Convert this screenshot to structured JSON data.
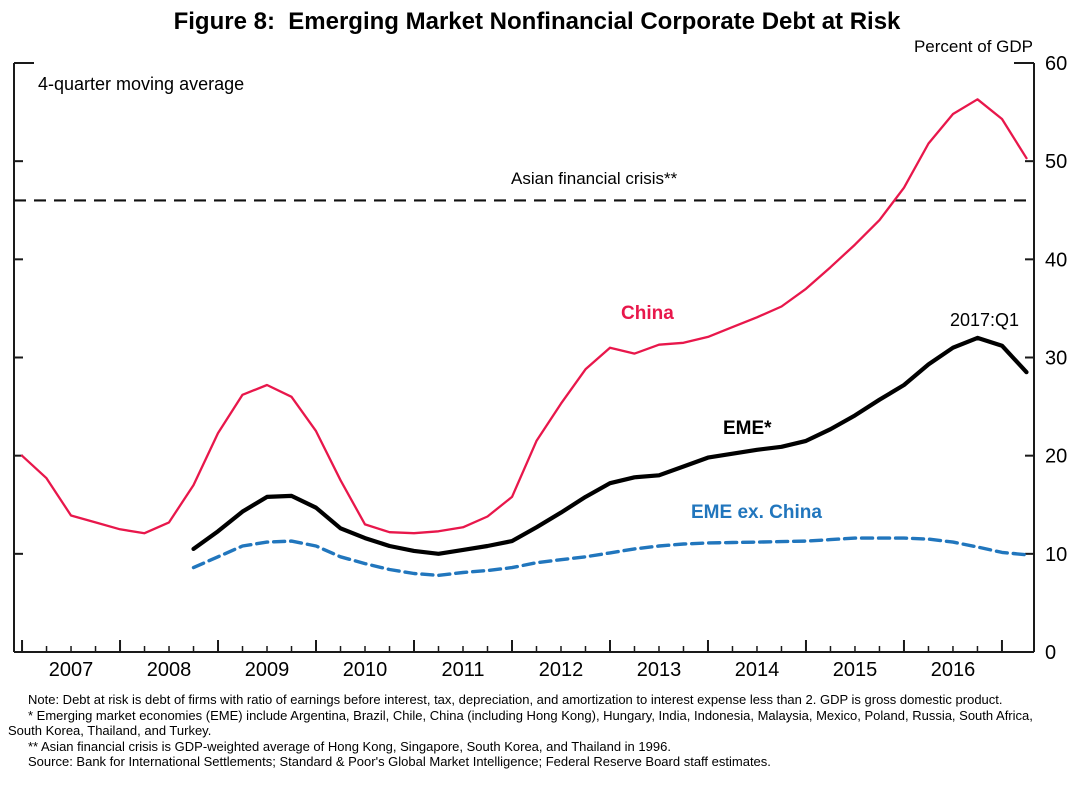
{
  "title": "Figure 8:  Emerging Market Nonfinancial Corporate Debt at Risk",
  "unit_label": "Percent of GDP",
  "annotations": {
    "moving_average": "4-quarter moving average",
    "crisis_line": "Asian financial crisis**",
    "china": "China",
    "eme": "EME*",
    "eme_ex_china": "EME ex. China",
    "last_point": "2017:Q1"
  },
  "colors": {
    "china": "#e8174b",
    "eme": "#000000",
    "eme_ex_china": "#2176bd",
    "reference": "#111111",
    "axis": "#1a1a1a"
  },
  "footnotes": [
    "Note: Debt at risk is debt of firms with ratio of earnings before interest, tax, depreciation, and amortization to interest expense less than 2. GDP is gross domestic product.",
    "* Emerging market economies (EME) include Argentina, Brazil, Chile, China (including Hong Kong), Hungary, India, Indonesia, Malaysia, Mexico, Poland, Russia, South Africa, South Korea, Thailand, and Turkey.",
    "** Asian financial crisis is GDP-weighted average of Hong Kong, Singapore, South Korea, and Thailand in 1996.",
    "Source: Bank for International Settlements; Standard & Poor's Global Market Intelligence; Federal Reserve Board staff estimates."
  ],
  "chart_data": {
    "type": "line",
    "title": "Emerging Market Nonfinancial Corporate Debt at Risk",
    "ylabel": "Percent of GDP",
    "note": "4-quarter moving average",
    "ylim": [
      0,
      60
    ],
    "yticks": [
      0,
      10,
      20,
      30,
      40,
      50,
      60
    ],
    "xlim": [
      2006.918,
      2017.327
    ],
    "x_year_ticks": [
      2007,
      2008,
      2009,
      2010,
      2011,
      2012,
      2013,
      2014,
      2015,
      2016,
      2017
    ],
    "x_tick_labels": [
      "2007",
      "2008",
      "2009",
      "2010",
      "2011",
      "2012",
      "2013",
      "2014",
      "2015",
      "2016"
    ],
    "grid": false,
    "legend_position": "inline-annotations",
    "reference_line": {
      "label": "Asian financial crisis**",
      "value": 46,
      "style": "dashed"
    },
    "last_observation": "2017:Q1",
    "series": [
      {
        "name": "China",
        "color": "#e8174b",
        "style": "solid",
        "width": 2.3,
        "x_start": 2007.0,
        "x_step": 0.25,
        "values": [
          20.0,
          17.7,
          13.9,
          13.2,
          12.5,
          12.1,
          13.2,
          17.0,
          22.3,
          26.2,
          27.2,
          26.0,
          22.5,
          17.5,
          13.0,
          12.2,
          12.1,
          12.3,
          12.7,
          13.8,
          15.8,
          21.5,
          25.3,
          28.8,
          31.0,
          30.4,
          31.3,
          31.5,
          32.1,
          33.1,
          34.1,
          35.2,
          37.0,
          39.2,
          41.5,
          44.0,
          47.3,
          51.8,
          54.8,
          56.3,
          54.3,
          50.3
        ]
      },
      {
        "name": "EME*",
        "color": "#000000",
        "style": "solid",
        "width": 4.2,
        "x_start": 2008.75,
        "x_step": 0.25,
        "values": [
          10.5,
          12.3,
          14.3,
          15.8,
          15.9,
          14.7,
          12.6,
          11.6,
          10.8,
          10.3,
          10.0,
          10.4,
          10.8,
          11.3,
          12.7,
          14.2,
          15.8,
          17.2,
          17.8,
          18.0,
          18.9,
          19.8,
          20.2,
          20.6,
          20.9,
          21.5,
          22.7,
          24.1,
          25.7,
          27.2,
          29.3,
          31.0,
          32.0,
          31.2,
          28.5
        ]
      },
      {
        "name": "EME ex. China",
        "color": "#2176bd",
        "style": "dashed",
        "width": 3.4,
        "x_start": 2008.75,
        "x_step": 0.25,
        "values": [
          8.6,
          9.7,
          10.8,
          11.2,
          11.3,
          10.8,
          9.7,
          9.0,
          8.4,
          8.0,
          7.8,
          8.1,
          8.3,
          8.6,
          9.1,
          9.4,
          9.7,
          10.1,
          10.5,
          10.8,
          11.0,
          11.1,
          11.15,
          11.2,
          11.25,
          11.3,
          11.45,
          11.6,
          11.6,
          11.6,
          11.5,
          11.2,
          10.7,
          10.15,
          9.9
        ]
      }
    ]
  }
}
